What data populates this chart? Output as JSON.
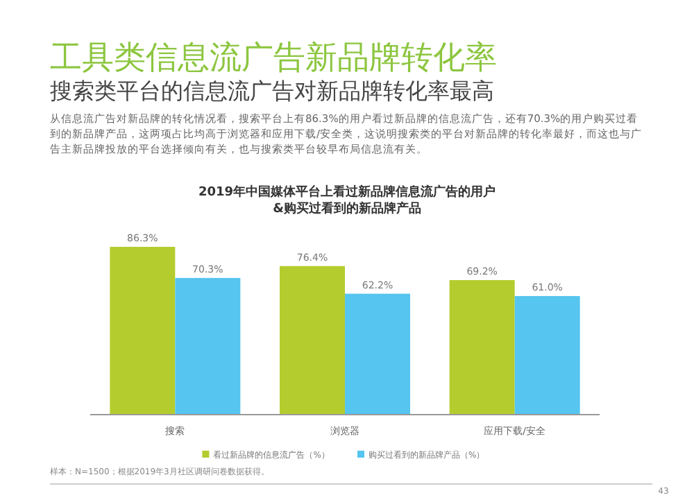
{
  "chart_data": {
    "type": "bar",
    "title": "工具类信息流广告新品牌转化率",
    "subtitle": "搜索类平台的信息流广告对新品牌转化率最高",
    "annotations": [
      "从信息流广告对新品牌的转化情况看，搜索平台上有86.3%的用户看过新品牌的信息流广告，还有70.3%的用户购买过看到的新品牌产品，这两项占比均高于浏览器和应用下载/安全类，这说明搜索类的平台对新品牌的转化率最好，而这也与广告主新品牌投放的平台选择倾向有关，也与搜索类平台较早布局信息流有关。",
      "2019年中国媒体平台上看过新品牌信息流广告的用户&购买过看到的新品牌产品",
      "样本：N=1500；根据2019年3月社区调研问卷数据获得。",
      "43"
    ],
    "categories": [
      "搜索",
      "浏览器",
      "应用下载/安全"
    ],
    "series": [
      {
        "name": "看过新品牌的信息流广告（%）",
        "color": "#b5cc2e",
        "values": [
          86.3,
          76.4,
          69.2
        ],
        "value_labels": [
          "86.3%",
          "76.4%",
          "69.2%"
        ]
      },
      {
        "name": "购买过看到的新品牌产品（%）",
        "color": "#56c5ef",
        "values": [
          70.3,
          62.2,
          61.0
        ],
        "value_labels": [
          "70.3%",
          "62.2%",
          "61.0%"
        ]
      }
    ],
    "legend": "bottom",
    "tick_labels": "x"
  }
}
